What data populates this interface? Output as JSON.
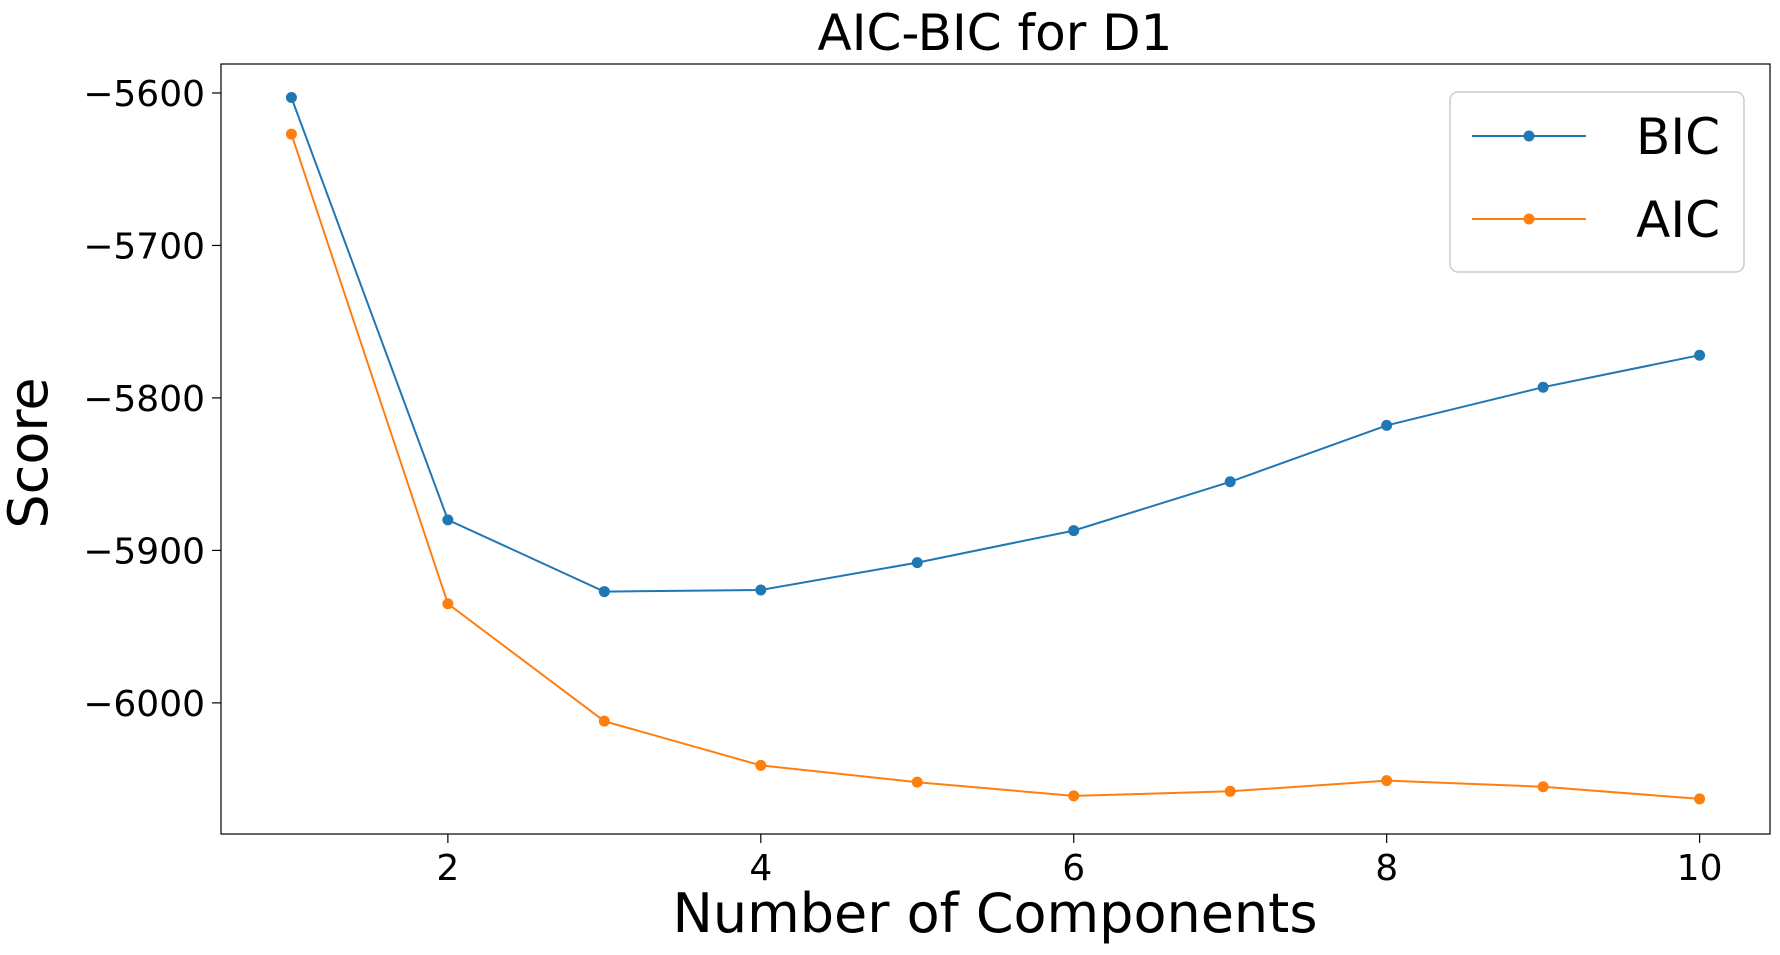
{
  "chart_data": {
    "type": "line",
    "title": "AIC-BIC for D1",
    "xlabel": "Number of Components",
    "ylabel": "Score",
    "x": [
      1,
      2,
      3,
      4,
      5,
      6,
      7,
      8,
      9,
      10
    ],
    "xlim": [
      0.55,
      10.45
    ],
    "ylim": [
      -6086,
      -5581
    ],
    "xticks": [
      2,
      4,
      6,
      8,
      10
    ],
    "yticks": [
      -5600,
      -5700,
      -5800,
      -5900,
      -6000
    ],
    "ytick_labels": [
      "−5600",
      "−5700",
      "−5800",
      "−5900",
      "−6000"
    ],
    "xtick_labels": [
      "2",
      "4",
      "6",
      "8",
      "10"
    ],
    "grid": false,
    "legend_position": "top-right",
    "series": [
      {
        "name": "BIC",
        "color": "#1f77b4",
        "marker": "circle",
        "values": [
          -5603,
          -5880,
          -5927,
          -5926,
          -5908,
          -5887,
          -5855,
          -5818,
          -5793,
          -5772
        ]
      },
      {
        "name": "AIC",
        "color": "#ff7f0e",
        "marker": "circle",
        "values": [
          -5627,
          -5935,
          -6012,
          -6041,
          -6052,
          -6061,
          -6058,
          -6051,
          -6055,
          -6063
        ]
      }
    ]
  }
}
